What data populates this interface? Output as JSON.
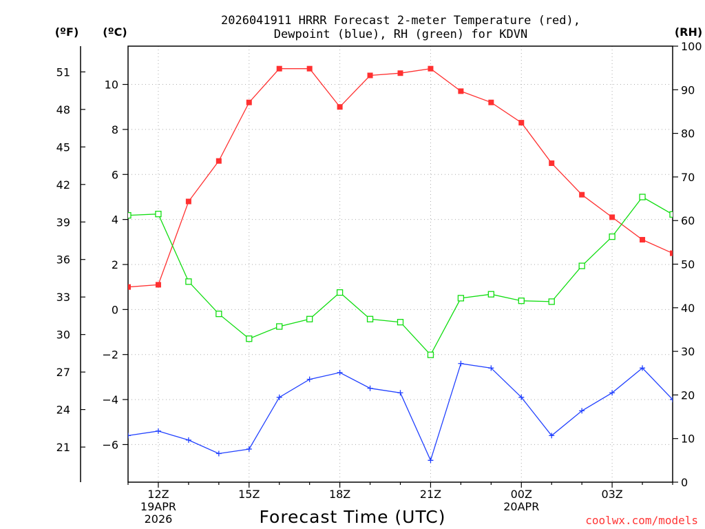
{
  "chart_data": {
    "type": "line",
    "title_line1": "2026041911 HRRR Forecast 2-meter Temperature (red),",
    "title_line2": "Dewpoint (blue), RH (green) for KDVN",
    "xlabel": "Forecast Time (UTC)",
    "credit": "coolwx.com/models",
    "units": {
      "fahrenheit": "(ºF)",
      "celsius": "(ºC)",
      "rh": "(RH)"
    },
    "x": [
      11,
      12,
      13,
      14,
      15,
      16,
      17,
      18,
      19,
      20,
      21,
      22,
      23,
      24,
      25,
      26,
      27,
      28,
      29
    ],
    "xlim": [
      11,
      29
    ],
    "x_ticks": [
      {
        "x": 12,
        "label": "12Z",
        "sub1": "19APR",
        "sub2": "2026"
      },
      {
        "x": 15,
        "label": "15Z",
        "sub1": "",
        "sub2": ""
      },
      {
        "x": 18,
        "label": "18Z",
        "sub1": "",
        "sub2": ""
      },
      {
        "x": 21,
        "label": "21Z",
        "sub1": "",
        "sub2": ""
      },
      {
        "x": 24,
        "label": "00Z",
        "sub1": "20APR",
        "sub2": ""
      },
      {
        "x": 27,
        "label": "03Z",
        "sub1": "",
        "sub2": ""
      }
    ],
    "ylim_c": [
      -7.67,
      11.7
    ],
    "celsius_ticks": [
      10,
      8,
      6,
      4,
      2,
      0,
      -2,
      -4,
      -6
    ],
    "celsius_tick_labels": [
      "10",
      "8",
      "6",
      "4",
      "2",
      "0",
      "−2",
      "−4",
      "−6"
    ],
    "fahrenheit_ticks": [
      51,
      48,
      45,
      42,
      39,
      36,
      33,
      30,
      27,
      24,
      21
    ],
    "rh_ticks": [
      100,
      90,
      80,
      70,
      60,
      50,
      40,
      30,
      20,
      10,
      0
    ],
    "ylim_rh": [
      0,
      100
    ],
    "series": [
      {
        "name": "Temperature",
        "color": "#ff3030",
        "axis": "c",
        "marker": "filled-square",
        "values": [
          1.0,
          1.1,
          4.8,
          6.6,
          9.2,
          10.7,
          10.7,
          9.0,
          10.4,
          10.5,
          10.7,
          9.7,
          9.2,
          8.3,
          6.5,
          5.1,
          4.1,
          3.1,
          2.5
        ]
      },
      {
        "name": "Dewpoint",
        "color": "#2040ff",
        "axis": "c",
        "marker": "plus",
        "values": [
          -5.6,
          -5.4,
          -5.8,
          -6.4,
          -6.2,
          -3.9,
          -3.1,
          -2.8,
          -3.5,
          -3.7,
          -6.7,
          -2.4,
          -2.6,
          -3.9,
          -5.6,
          -4.5,
          -3.7,
          -2.6,
          -4.0
        ]
      },
      {
        "name": "RH",
        "color": "#10dd10",
        "axis": "rh",
        "marker": "open-square",
        "values": [
          61.2,
          61.5,
          46.0,
          38.6,
          32.9,
          35.7,
          37.4,
          43.5,
          37.4,
          36.7,
          29.2,
          42.2,
          43.1,
          41.6,
          41.4,
          49.6,
          56.3,
          65.4,
          61.4
        ]
      }
    ]
  }
}
